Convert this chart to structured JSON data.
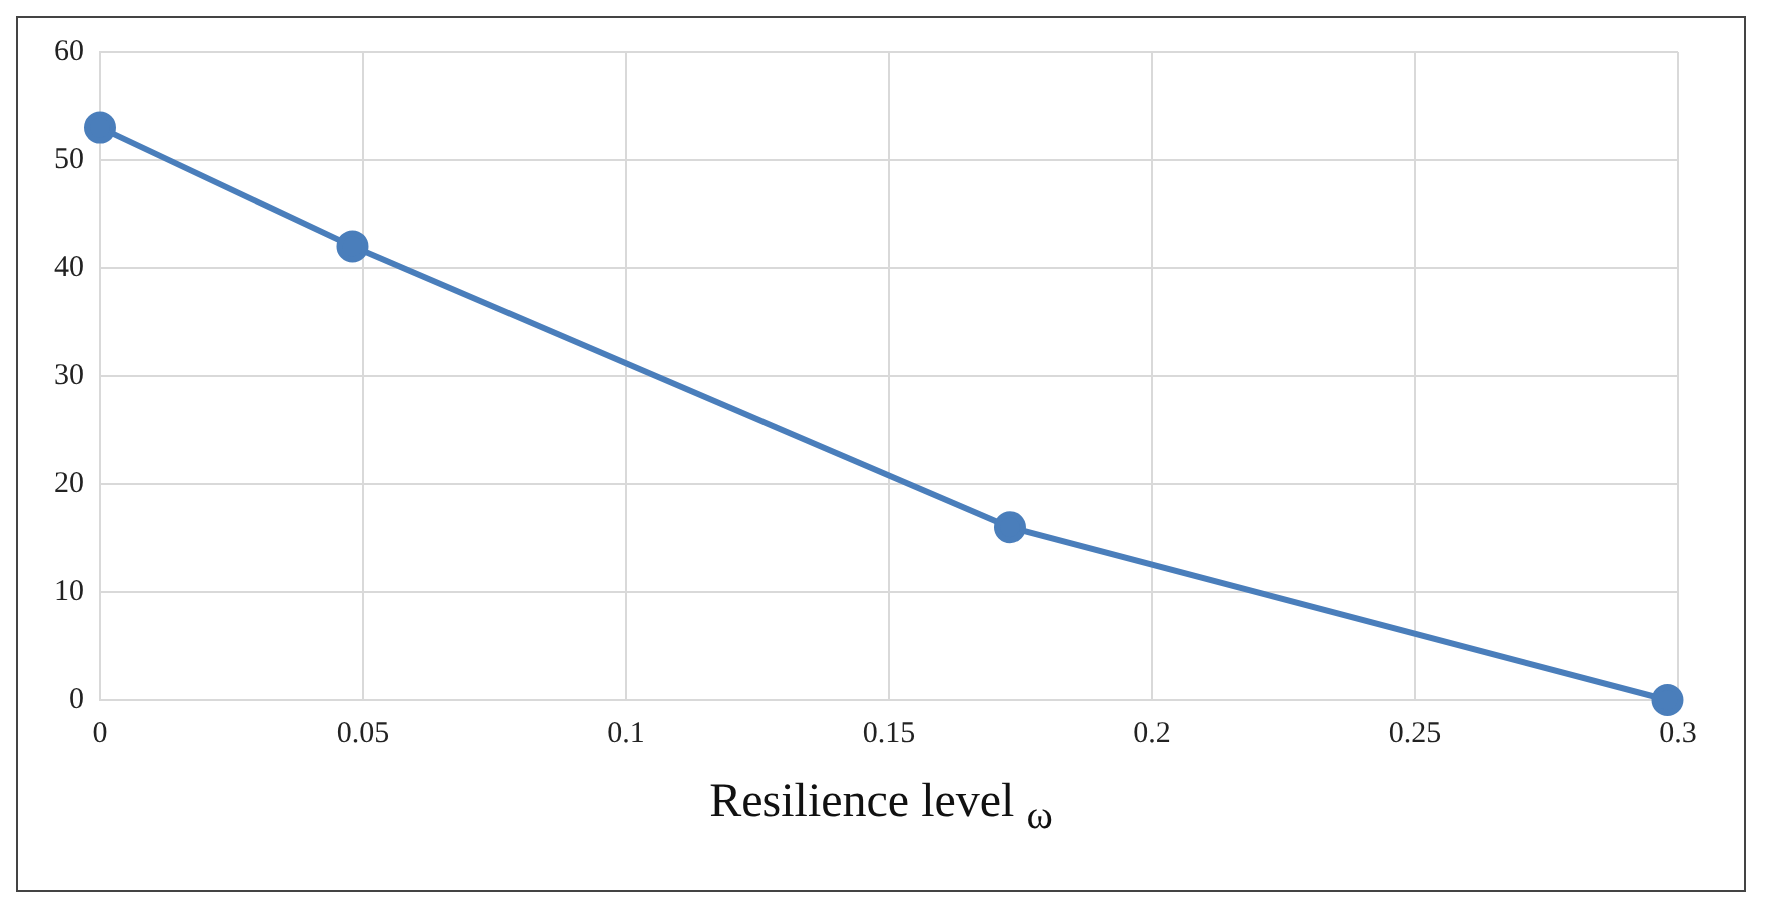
{
  "chart_data": {
    "type": "line",
    "xlabel": "Resilience level $_{ω}$",
    "x": [
      0,
      0.048,
      0.173,
      0.298
    ],
    "series": [
      {
        "color": "#4a7ebb",
        "values": [
          53,
          42,
          16,
          0
        ]
      }
    ],
    "xlim": [
      0,
      0.3
    ],
    "xticks": [
      0,
      0.05,
      0.1,
      0.15,
      0.2,
      0.25,
      0.3
    ],
    "ylim": [
      0,
      60
    ],
    "yticks": [
      0,
      10,
      20,
      30,
      40,
      50,
      60
    ],
    "grid": true,
    "legend": false,
    "marker": "circle",
    "line_style": "solid"
  }
}
